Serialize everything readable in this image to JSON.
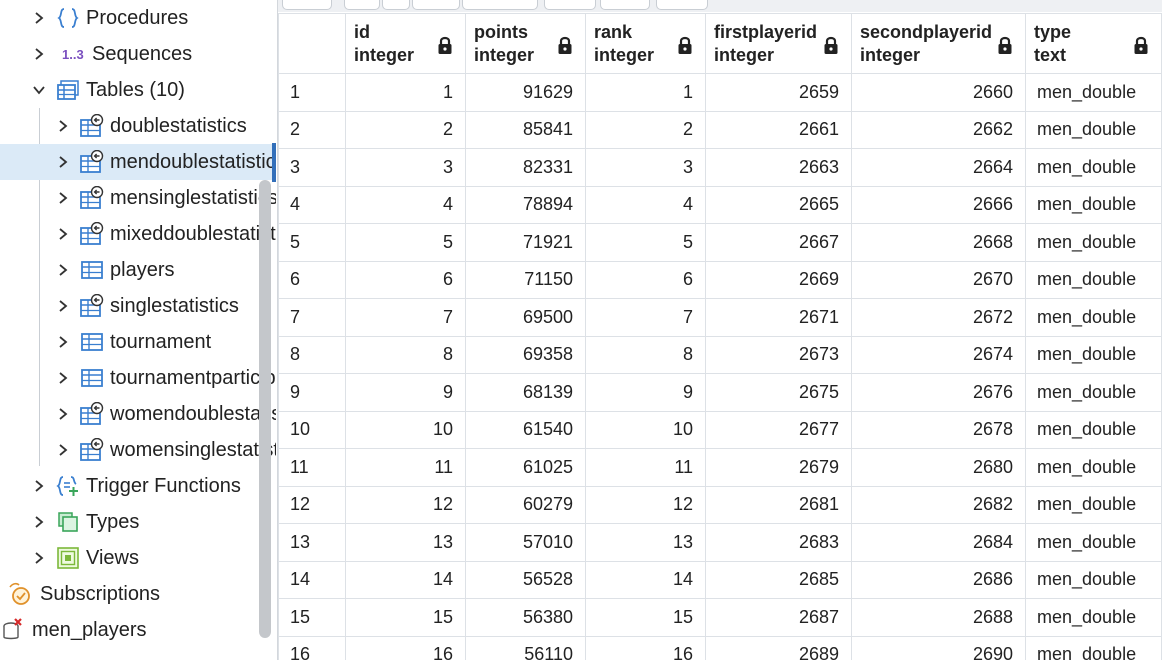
{
  "sidebar": {
    "items": [
      {
        "label": "Procedures",
        "icon": "procedures-icon",
        "level": 1,
        "expanded": false
      },
      {
        "label": "Sequences",
        "icon": "sequences-icon",
        "level": 1,
        "expanded": false
      },
      {
        "label": "Tables (10)",
        "icon": "tables-icon",
        "level": 1,
        "expanded": true
      },
      {
        "label": "doublestatistics",
        "icon": "inherited-table-icon",
        "level": 2,
        "expanded": false
      },
      {
        "label": "mendoublestatistics",
        "icon": "inherited-table-icon",
        "level": 2,
        "expanded": false,
        "selected": true
      },
      {
        "label": "mensinglestatistics",
        "icon": "inherited-table-icon",
        "level": 2,
        "expanded": false
      },
      {
        "label": "mixeddoublestatistics",
        "icon": "inherited-table-icon",
        "level": 2,
        "expanded": false
      },
      {
        "label": "players",
        "icon": "table-icon",
        "level": 2,
        "expanded": false
      },
      {
        "label": "singlestatistics",
        "icon": "inherited-table-icon",
        "level": 2,
        "expanded": false
      },
      {
        "label": "tournament",
        "icon": "table-icon",
        "level": 2,
        "expanded": false
      },
      {
        "label": "tournamentparticipants",
        "icon": "table-icon",
        "level": 2,
        "expanded": false
      },
      {
        "label": "womendoublestatistics",
        "icon": "inherited-table-icon",
        "level": 2,
        "expanded": false
      },
      {
        "label": "womensinglestatistics",
        "icon": "inherited-table-icon",
        "level": 2,
        "expanded": false
      },
      {
        "label": "Trigger Functions",
        "icon": "trigger-functions-icon",
        "level": 1,
        "expanded": false
      },
      {
        "label": "Types",
        "icon": "types-icon",
        "level": 1,
        "expanded": false
      },
      {
        "label": "Views",
        "icon": "views-icon",
        "level": 1,
        "expanded": false
      },
      {
        "label": "Subscriptions",
        "icon": "subscriptions-icon",
        "level": 0
      },
      {
        "label": "men_players",
        "icon": "database-disconnected-icon",
        "level": 0
      }
    ],
    "sequences_glyph": "1..3"
  },
  "grid": {
    "columns": [
      {
        "name": "id",
        "type": "integer",
        "align": "num"
      },
      {
        "name": "points",
        "type": "integer",
        "align": "num"
      },
      {
        "name": "rank",
        "type": "integer",
        "align": "num"
      },
      {
        "name": "firstplayerid",
        "type": "integer",
        "align": "num"
      },
      {
        "name": "secondplayerid",
        "type": "integer",
        "align": "num"
      },
      {
        "name": "type",
        "type": "text",
        "align": "txt"
      }
    ],
    "rows": [
      [
        "1",
        "1",
        "91629",
        "1",
        "2659",
        "2660",
        "men_double"
      ],
      [
        "2",
        "2",
        "85841",
        "2",
        "2661",
        "2662",
        "men_double"
      ],
      [
        "3",
        "3",
        "82331",
        "3",
        "2663",
        "2664",
        "men_double"
      ],
      [
        "4",
        "4",
        "78894",
        "4",
        "2665",
        "2666",
        "men_double"
      ],
      [
        "5",
        "5",
        "71921",
        "5",
        "2667",
        "2668",
        "men_double"
      ],
      [
        "6",
        "6",
        "71150",
        "6",
        "2669",
        "2670",
        "men_double"
      ],
      [
        "7",
        "7",
        "69500",
        "7",
        "2671",
        "2672",
        "men_double"
      ],
      [
        "8",
        "8",
        "69358",
        "8",
        "2673",
        "2674",
        "men_double"
      ],
      [
        "9",
        "9",
        "68139",
        "9",
        "2675",
        "2676",
        "men_double"
      ],
      [
        "10",
        "10",
        "61540",
        "10",
        "2677",
        "2678",
        "men_double"
      ],
      [
        "11",
        "11",
        "61025",
        "11",
        "2679",
        "2680",
        "men_double"
      ],
      [
        "12",
        "12",
        "60279",
        "12",
        "2681",
        "2682",
        "men_double"
      ],
      [
        "13",
        "13",
        "57010",
        "13",
        "2683",
        "2684",
        "men_double"
      ],
      [
        "14",
        "14",
        "56528",
        "14",
        "2685",
        "2686",
        "men_double"
      ],
      [
        "15",
        "15",
        "56380",
        "15",
        "2687",
        "2688",
        "men_double"
      ],
      [
        "16",
        "16",
        "56110",
        "16",
        "2689",
        "2690",
        "men_double"
      ]
    ]
  },
  "colors": {
    "accent": "#326fba",
    "selected_row": "#dbeaf7",
    "icon_blue": "#3a7fd0",
    "icon_green": "#3aa55a",
    "icon_purple": "#7a4fbf",
    "icon_orange": "#e0912b",
    "error_red": "#d62a2a"
  }
}
